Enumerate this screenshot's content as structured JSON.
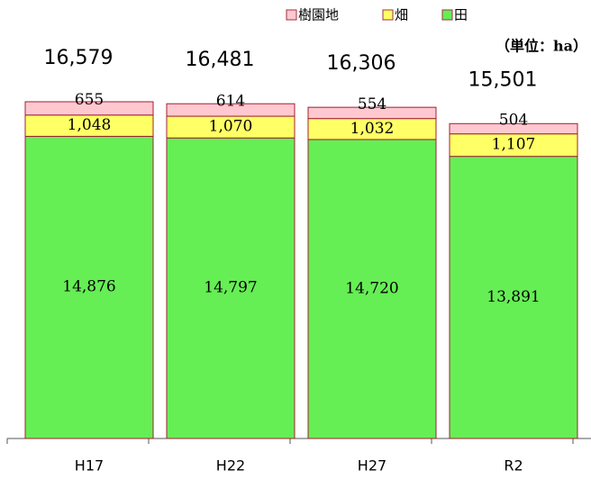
{
  "chart_data": {
    "type": "bar",
    "stacked": true,
    "unit_note": "（単位：ha）",
    "categories": [
      "H17",
      "H22",
      "H27",
      "R2"
    ],
    "series": [
      {
        "name": "田",
        "color": "#66ee55",
        "values": [
          14876,
          14797,
          14720,
          13891
        ],
        "value_labels": [
          "14,876",
          "14,797",
          "14,720",
          "13,891"
        ]
      },
      {
        "name": "畑",
        "color": "#ffff66",
        "values": [
          1048,
          1070,
          1032,
          1107
        ],
        "value_labels": [
          "1,048",
          "1,070",
          "1,032",
          "1,107"
        ]
      },
      {
        "name": "樹園地",
        "color": "#ffc8d0",
        "values": [
          655,
          614,
          554,
          504
        ],
        "value_labels": [
          "655",
          "614",
          "554",
          "504"
        ]
      }
    ],
    "totals": [
      16579,
      16481,
      16306,
      15501
    ],
    "total_labels": [
      "16,579",
      "16,481",
      "16,306",
      "15,501"
    ]
  }
}
